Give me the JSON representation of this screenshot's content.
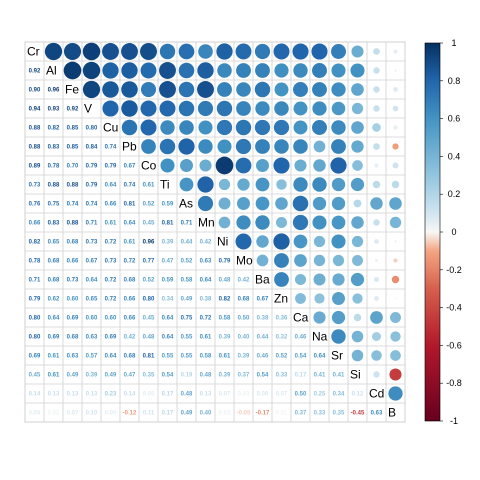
{
  "chart_data": {
    "type": "heatmap",
    "subtype": "correlation-matrix (mixed: numbers lower, circles upper, labels on diagonal)",
    "variables": [
      "Cr",
      "Al",
      "Fe",
      "V",
      "Cu",
      "Pb",
      "Co",
      "Ti",
      "As",
      "Mn",
      "Ni",
      "Mo",
      "Ba",
      "Zn",
      "Ca",
      "Na",
      "Sr",
      "Si",
      "Cd",
      "B"
    ],
    "matrix": [
      [
        1.0,
        0.92,
        0.9,
        0.94,
        0.88,
        0.88,
        0.89,
        0.73,
        0.76,
        0.66,
        0.82,
        0.78,
        0.71,
        0.79,
        0.8,
        0.8,
        0.69,
        0.45,
        0.14,
        0.05
      ],
      [
        0.92,
        1.0,
        0.96,
        0.93,
        0.82,
        0.83,
        0.78,
        0.88,
        0.75,
        0.83,
        0.65,
        0.68,
        0.68,
        0.62,
        0.64,
        0.69,
        0.61,
        0.61,
        0.13,
        0.02
      ],
      [
        0.9,
        0.96,
        1.0,
        0.92,
        0.85,
        0.85,
        0.7,
        0.88,
        0.74,
        0.88,
        0.68,
        0.66,
        0.73,
        0.6,
        0.69,
        0.68,
        0.63,
        0.49,
        0.13,
        0.07
      ],
      [
        0.94,
        0.93,
        0.92,
        1.0,
        0.8,
        0.84,
        0.79,
        0.79,
        0.74,
        0.71,
        0.73,
        0.67,
        0.64,
        0.65,
        0.6,
        0.63,
        0.57,
        0.39,
        0.13,
        0.1
      ],
      [
        0.88,
        0.82,
        0.85,
        0.8,
        1.0,
        0.74,
        0.79,
        0.64,
        0.66,
        0.61,
        0.72,
        0.73,
        0.72,
        0.72,
        0.6,
        0.69,
        0.64,
        0.49,
        0.23,
        0.05
      ],
      [
        0.88,
        0.83,
        0.85,
        0.84,
        0.74,
        1.0,
        0.67,
        0.74,
        0.81,
        0.64,
        0.61,
        0.72,
        0.68,
        0.66,
        0.66,
        0.42,
        0.68,
        0.47,
        0.14,
        -0.12
      ],
      [
        0.89,
        0.78,
        0.7,
        0.79,
        0.79,
        0.67,
        1.0,
        0.61,
        0.52,
        0.45,
        0.96,
        0.77,
        0.52,
        0.8,
        0.45,
        0.48,
        0.81,
        0.35,
        0.05,
        0.11
      ],
      [
        0.73,
        0.88,
        0.88,
        0.79,
        0.64,
        0.74,
        0.61,
        1.0,
        0.59,
        0.81,
        0.39,
        0.47,
        0.59,
        0.34,
        0.64,
        0.64,
        0.55,
        0.54,
        0.17,
        0.17
      ],
      [
        0.76,
        0.75,
        0.74,
        0.74,
        0.66,
        0.81,
        0.52,
        0.59,
        1.0,
        0.71,
        0.44,
        0.52,
        0.58,
        0.49,
        0.75,
        0.55,
        0.55,
        0.19,
        0.48,
        0.49
      ],
      [
        0.66,
        0.83,
        0.88,
        0.71,
        0.61,
        0.64,
        0.45,
        0.81,
        0.71,
        1.0,
        0.42,
        0.63,
        0.64,
        0.38,
        0.72,
        0.61,
        0.58,
        0.48,
        0.13,
        0.4
      ],
      [
        0.82,
        0.65,
        0.68,
        0.73,
        0.72,
        0.61,
        0.96,
        0.39,
        0.44,
        0.42,
        1.0,
        0.79,
        0.48,
        0.82,
        0.58,
        0.39,
        0.61,
        0.39,
        0.07,
        0.02
      ],
      [
        0.78,
        0.68,
        0.66,
        0.67,
        0.73,
        0.72,
        0.77,
        0.47,
        0.52,
        0.63,
        0.79,
        1.0,
        0.42,
        0.68,
        0.5,
        0.4,
        0.39,
        0.37,
        0.03,
        -0.05
      ],
      [
        0.71,
        0.68,
        0.73,
        0.64,
        0.72,
        0.68,
        0.52,
        0.59,
        0.58,
        0.64,
        0.48,
        0.42,
        1.0,
        0.67,
        0.38,
        0.44,
        0.46,
        0.54,
        0.08,
        -0.17
      ],
      [
        0.79,
        0.62,
        0.6,
        0.65,
        0.72,
        0.66,
        0.8,
        0.34,
        0.49,
        0.38,
        0.82,
        0.68,
        0.67,
        1.0,
        0.36,
        0.32,
        0.52,
        0.33,
        0.07,
        0.01
      ],
      [
        0.8,
        0.64,
        0.69,
        0.6,
        0.6,
        0.66,
        0.45,
        0.64,
        0.75,
        0.72,
        0.58,
        0.5,
        0.38,
        0.36,
        1.0,
        0.46,
        0.54,
        0.17,
        0.5,
        0.37
      ],
      [
        0.8,
        0.69,
        0.68,
        0.63,
        0.69,
        0.42,
        0.48,
        0.64,
        0.55,
        0.61,
        0.39,
        0.4,
        0.44,
        0.32,
        0.46,
        1.0,
        0.64,
        0.41,
        0.25,
        0.33
      ],
      [
        0.69,
        0.61,
        0.63,
        0.57,
        0.64,
        0.68,
        0.81,
        0.55,
        0.55,
        0.58,
        0.61,
        0.39,
        0.46,
        0.52,
        0.54,
        0.64,
        1.0,
        0.41,
        0.34,
        0.35
      ],
      [
        0.45,
        0.61,
        0.49,
        0.39,
        0.49,
        0.47,
        0.35,
        0.54,
        0.19,
        0.48,
        0.39,
        0.37,
        0.54,
        0.33,
        0.17,
        0.41,
        0.41,
        1.0,
        0.12,
        -0.45
      ],
      [
        0.14,
        0.13,
        0.13,
        0.13,
        0.23,
        0.14,
        0.05,
        0.17,
        0.48,
        0.13,
        0.07,
        0.03,
        0.08,
        0.07,
        0.5,
        0.25,
        0.34,
        0.12,
        1.0,
        0.63
      ],
      [
        0.05,
        0.02,
        0.07,
        0.1,
        0.05,
        -0.12,
        0.11,
        0.17,
        0.49,
        0.4,
        0.02,
        -0.05,
        -0.17,
        0.01,
        0.37,
        0.33,
        0.35,
        -0.45,
        0.63,
        1.0
      ]
    ],
    "lower": "number",
    "upper": "circle",
    "diagonal": "variable label",
    "color_range": [
      -1,
      1
    ],
    "colorbar_ticks": [
      "1",
      "0.8",
      "0.6",
      "0.4",
      "0.2",
      "0",
      "-0.2",
      "-0.4",
      "-0.6",
      "-0.8",
      "-1"
    ],
    "colorbar_tick_values": [
      1,
      0.8,
      0.6,
      0.4,
      0.2,
      0,
      -0.2,
      -0.4,
      -0.6,
      -0.8,
      -1
    ],
    "colorbar_position": "right",
    "grid": true,
    "colors": {
      "strong_negative": "#67001F",
      "negative": "#D6604D",
      "neutral": "#F7F7F7",
      "positive": "#4393C3",
      "strong_positive": "#053061",
      "grid": "#d0d0d0"
    },
    "title": "",
    "xlabel": "",
    "ylabel": ""
  }
}
